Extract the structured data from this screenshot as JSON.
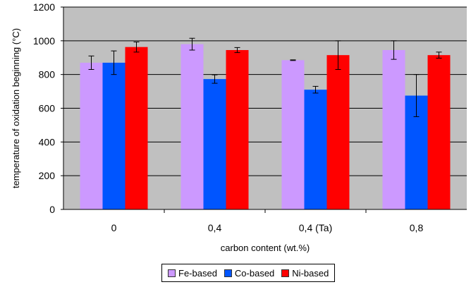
{
  "chart_data": {
    "type": "bar",
    "title": "",
    "xlabel": "carbon content (wt.%)",
    "ylabel": "temperature of oxidation beginning (°C)",
    "ylim": [
      0,
      1200
    ],
    "yticks": [
      "0",
      "200",
      "400",
      "600",
      "800",
      "1000",
      "1200"
    ],
    "grid": true,
    "legend_position": "bottom",
    "plot_background": "#c0c0c0",
    "categories": [
      "0",
      "0,4",
      "0,4 (Ta)",
      "0,8"
    ],
    "series": [
      {
        "name": "Fe-based",
        "color": "#cc99ff",
        "values": [
          870,
          980,
          885,
          945
        ],
        "errors": [
          40,
          35,
          2,
          55
        ]
      },
      {
        "name": "Co-based",
        "color": "#0055ff",
        "values": [
          870,
          773,
          710,
          675
        ],
        "errors": [
          70,
          25,
          20,
          125
        ]
      },
      {
        "name": "Ni-based",
        "color": "#ff0000",
        "values": [
          963,
          945,
          915,
          915
        ],
        "errors": [
          30,
          15,
          85,
          18
        ]
      }
    ]
  }
}
